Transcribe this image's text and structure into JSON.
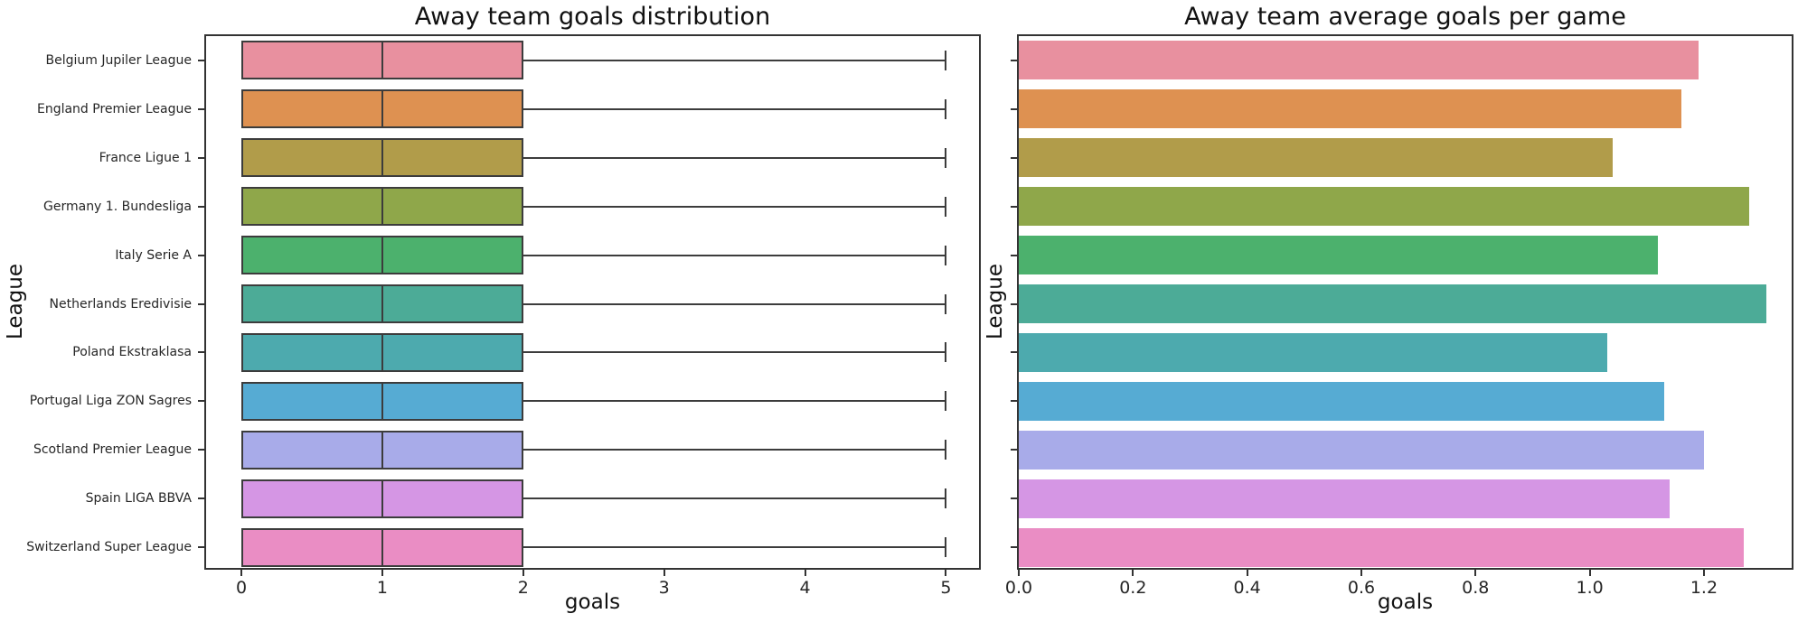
{
  "figure": {
    "background": "#ffffff",
    "text_color": "#1a1a1a",
    "edge_color": "#3c3c3c",
    "spine_color": "#333333"
  },
  "leagues": [
    "Belgium Jupiler League",
    "England Premier League",
    "France Ligue 1",
    "Germany 1. Bundesliga",
    "Italy Serie A",
    "Netherlands Eredivisie",
    "Poland Ekstraklasa",
    "Portugal Liga ZON Sagres",
    "Scotland Premier League",
    "Spain LIGA BBVA",
    "Switzerland Super League"
  ],
  "palette": [
    "#e8909f",
    "#de9151",
    "#b19c4a",
    "#8fa74a",
    "#4cb16d",
    "#4cab97",
    "#4daaae",
    "#56abd3",
    "#a8abe9",
    "#d596e4",
    "#ea8dc4"
  ],
  "chart_data": [
    {
      "type": "boxplot-horizontal",
      "title": "Away team goals distribution",
      "xlabel": "goals",
      "ylabel": "League",
      "xlim": [
        -0.25,
        5.26
      ],
      "xticks": [
        0,
        1,
        2,
        3,
        4,
        5
      ],
      "xtick_labels": [
        "0",
        "1",
        "2",
        "3",
        "4",
        "5"
      ],
      "grid": false,
      "categories": [
        "Belgium Jupiler League",
        "England Premier League",
        "France Ligue 1",
        "Germany 1. Bundesliga",
        "Italy Serie A",
        "Netherlands Eredivisie",
        "Poland Ekstraklasa",
        "Portugal Liga ZON Sagres",
        "Scotland Premier League",
        "Spain LIGA BBVA",
        "Switzerland Super League"
      ],
      "boxes": [
        {
          "category": "Belgium Jupiler League",
          "min": 0,
          "q1": 0,
          "median": 1,
          "q3": 2,
          "max": 5
        },
        {
          "category": "England Premier League",
          "min": 0,
          "q1": 0,
          "median": 1,
          "q3": 2,
          "max": 5
        },
        {
          "category": "France Ligue 1",
          "min": 0,
          "q1": 0,
          "median": 1,
          "q3": 2,
          "max": 5
        },
        {
          "category": "Germany 1. Bundesliga",
          "min": 0,
          "q1": 0,
          "median": 1,
          "q3": 2,
          "max": 5
        },
        {
          "category": "Italy Serie A",
          "min": 0,
          "q1": 0,
          "median": 1,
          "q3": 2,
          "max": 5
        },
        {
          "category": "Netherlands Eredivisie",
          "min": 0,
          "q1": 0,
          "median": 1,
          "q3": 2,
          "max": 5
        },
        {
          "category": "Poland Ekstraklasa",
          "min": 0,
          "q1": 0,
          "median": 1,
          "q3": 2,
          "max": 5
        },
        {
          "category": "Portugal Liga ZON Sagres",
          "min": 0,
          "q1": 0,
          "median": 1,
          "q3": 2,
          "max": 5
        },
        {
          "category": "Scotland Premier League",
          "min": 0,
          "q1": 0,
          "median": 1,
          "q3": 2,
          "max": 5
        },
        {
          "category": "Spain LIGA BBVA",
          "min": 0,
          "q1": 0,
          "median": 1,
          "q3": 2,
          "max": 5
        },
        {
          "category": "Switzerland Super League",
          "min": 0,
          "q1": 0,
          "median": 1,
          "q3": 2,
          "max": 5
        }
      ]
    },
    {
      "type": "bar-horizontal",
      "title": "Away team average goals per game",
      "xlabel": "goals",
      "ylabel": "League",
      "xlim": [
        0,
        1.36
      ],
      "xticks": [
        0,
        0.2,
        0.4,
        0.6,
        0.8,
        1.0,
        1.2
      ],
      "xtick_labels": [
        "0.0",
        "0.2",
        "0.4",
        "0.6",
        "0.8",
        "1.0",
        "1.2"
      ],
      "grid": false,
      "categories": [
        "Belgium Jupiler League",
        "England Premier League",
        "France Ligue 1",
        "Germany 1. Bundesliga",
        "Italy Serie A",
        "Netherlands Eredivisie",
        "Poland Ekstraklasa",
        "Portugal Liga ZON Sagres",
        "Scotland Premier League",
        "Spain LIGA BBVA",
        "Switzerland Super League"
      ],
      "values": [
        1.19,
        1.16,
        1.04,
        1.28,
        1.12,
        1.31,
        1.03,
        1.13,
        1.2,
        1.14,
        1.27
      ]
    }
  ]
}
